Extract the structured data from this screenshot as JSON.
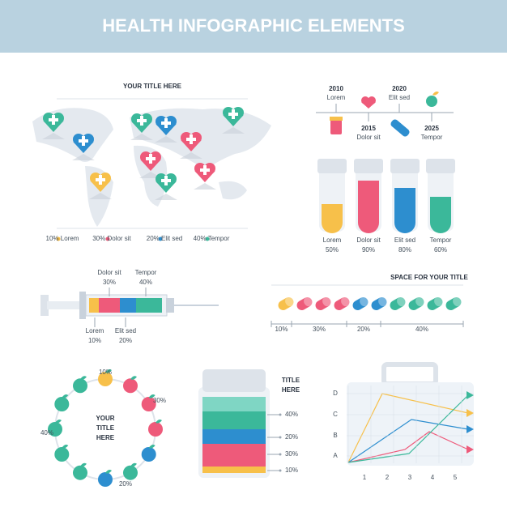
{
  "header": {
    "title": "HEALTH INFOGRAPHIC ELEMENTS"
  },
  "map": {
    "title": "YOUR TITLE HERE",
    "legend": [
      "10% Lorem",
      "30% Dolor sit",
      "20% Elit sed",
      "40% Tempor"
    ]
  },
  "timeline": {
    "items": [
      {
        "year": "2010",
        "label": "Lorem"
      },
      {
        "year": "2015",
        "label": "Dolor sit"
      },
      {
        "year": "2020",
        "label": "Elit sed"
      },
      {
        "year": "2025",
        "label": "Tempor"
      }
    ]
  },
  "tubes": {
    "items": [
      {
        "label": "Lorem",
        "value": "50%"
      },
      {
        "label": "Dolor sit",
        "value": "90%"
      },
      {
        "label": "Elit sed",
        "value": "80%"
      },
      {
        "label": "Tempor",
        "value": "60%"
      }
    ]
  },
  "syringe": {
    "items": [
      {
        "label": "Dolor sit",
        "value": "30%"
      },
      {
        "label": "Tempor",
        "value": "40%"
      },
      {
        "label": "Lorem",
        "value": "10%"
      },
      {
        "label": "Elit sed",
        "value": "20%"
      }
    ]
  },
  "pills": {
    "title": "SPACE FOR YOUR TITLE",
    "scale": [
      "10%",
      "30%",
      "20%",
      "40%"
    ]
  },
  "apples": {
    "title": [
      "YOUR",
      "TITLE",
      "HERE"
    ],
    "labels": [
      "10%",
      "30%",
      "40%",
      "20%"
    ]
  },
  "bottle": {
    "title": [
      "TITLE",
      "HERE"
    ],
    "levels": [
      "40%",
      "20%",
      "30%",
      "10%"
    ]
  },
  "line_chart": {
    "y_labels": [
      "D",
      "C",
      "B",
      "A"
    ],
    "x_labels": [
      "1",
      "2",
      "3",
      "4",
      "5"
    ]
  }
}
